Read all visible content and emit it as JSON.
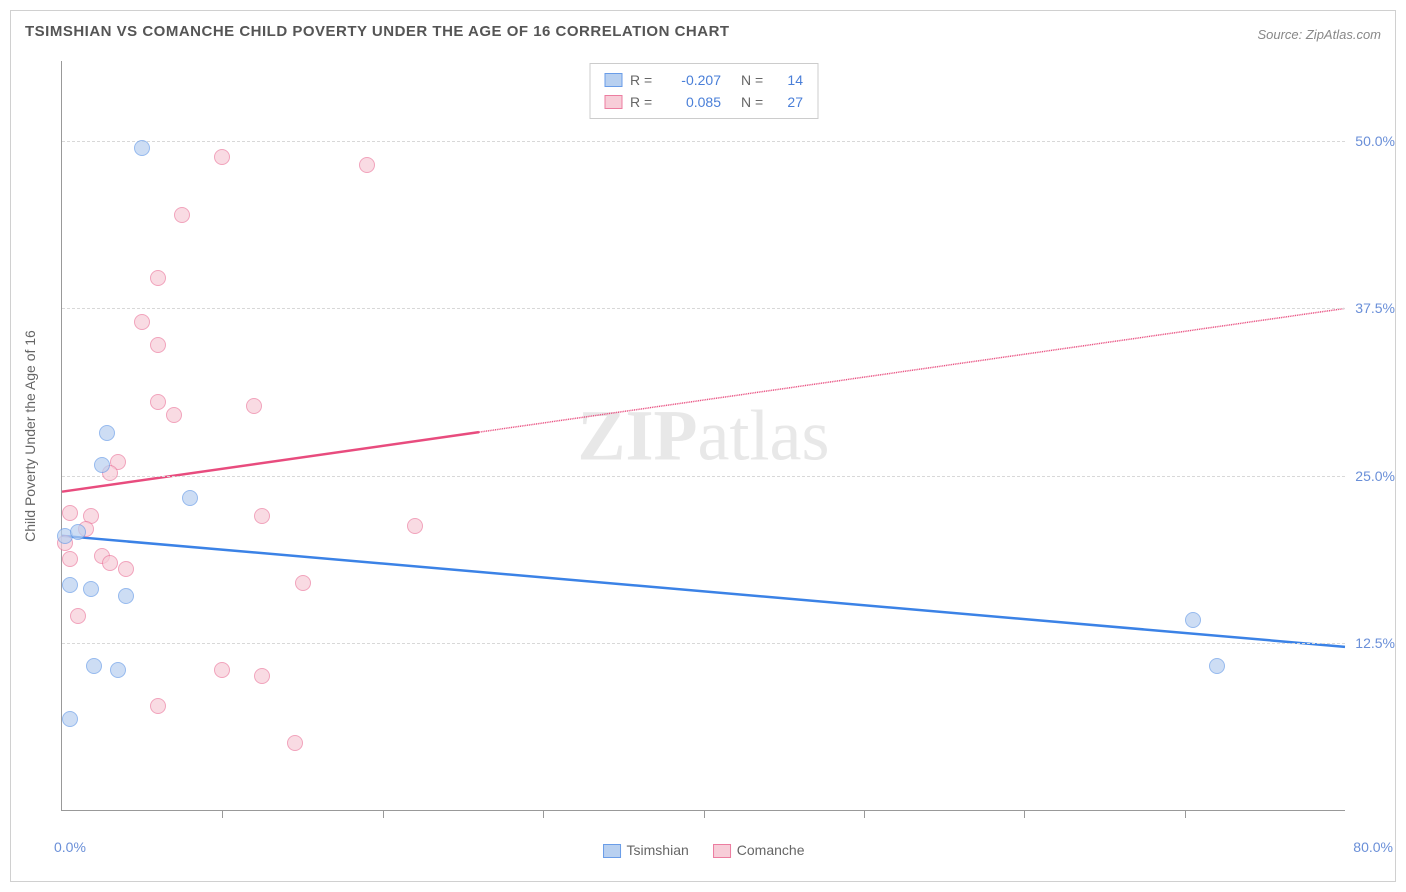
{
  "title": "TSIMSHIAN VS COMANCHE CHILD POVERTY UNDER THE AGE OF 16 CORRELATION CHART",
  "source": "Source: ZipAtlas.com",
  "watermark": {
    "part1": "ZIP",
    "part2": "atlas"
  },
  "y_axis_title": "Child Poverty Under the Age of 16",
  "chart": {
    "type": "scatter",
    "xlim": [
      0,
      80
    ],
    "ylim": [
      0,
      56
    ],
    "x_ticks": [
      10,
      20,
      30,
      40,
      50,
      60,
      70
    ],
    "x_labels": [
      {
        "v": 0,
        "label": "0.0%"
      },
      {
        "v": 80,
        "label": "80.0%"
      }
    ],
    "y_gridlines": [
      {
        "v": 12.5,
        "label": "12.5%"
      },
      {
        "v": 25.0,
        "label": "25.0%"
      },
      {
        "v": 37.5,
        "label": "37.5%"
      },
      {
        "v": 50.0,
        "label": "50.0%"
      }
    ],
    "background_color": "#ffffff",
    "grid_color": "#d8d8d8",
    "axis_color": "#999999",
    "label_color": "#6a8fd8",
    "series": [
      {
        "name": "Tsimshian",
        "fill_color": "#b8d0f0",
        "stroke_color": "#6a9de8",
        "line_color": "#3b82e6",
        "r_label": "R = ",
        "r_value": "-0.207",
        "n_label": "N = ",
        "n_value": "14",
        "trend": {
          "x1": 0,
          "y1": 20.5,
          "x2": 80,
          "y2": 12.2,
          "solid_until": 80
        },
        "points": [
          {
            "x": 5.0,
            "y": 49.5
          },
          {
            "x": 2.8,
            "y": 28.2
          },
          {
            "x": 2.5,
            "y": 25.8
          },
          {
            "x": 8.0,
            "y": 23.3
          },
          {
            "x": 0.2,
            "y": 20.5
          },
          {
            "x": 0.5,
            "y": 16.8
          },
          {
            "x": 1.8,
            "y": 16.5
          },
          {
            "x": 4.0,
            "y": 16.0
          },
          {
            "x": 2.0,
            "y": 10.8
          },
          {
            "x": 3.5,
            "y": 10.5
          },
          {
            "x": 0.5,
            "y": 6.8
          },
          {
            "x": 70.5,
            "y": 14.2
          },
          {
            "x": 72.0,
            "y": 10.8
          },
          {
            "x": 1.0,
            "y": 20.8
          }
        ]
      },
      {
        "name": "Comanche",
        "fill_color": "#f7cdd8",
        "stroke_color": "#ec7da0",
        "line_color": "#e84c7e",
        "r_label": "R = ",
        "r_value": " 0.085",
        "n_label": "N = ",
        "n_value": "27",
        "trend": {
          "x1": 0,
          "y1": 23.8,
          "x2": 80,
          "y2": 37.5,
          "solid_until": 26
        },
        "points": [
          {
            "x": 10.0,
            "y": 48.8
          },
          {
            "x": 19.0,
            "y": 48.2
          },
          {
            "x": 7.5,
            "y": 44.5
          },
          {
            "x": 6.0,
            "y": 39.8
          },
          {
            "x": 5.0,
            "y": 36.5
          },
          {
            "x": 6.0,
            "y": 34.8
          },
          {
            "x": 6.0,
            "y": 30.5
          },
          {
            "x": 12.0,
            "y": 30.2
          },
          {
            "x": 7.0,
            "y": 29.5
          },
          {
            "x": 3.5,
            "y": 26.0
          },
          {
            "x": 3.0,
            "y": 25.2
          },
          {
            "x": 0.5,
            "y": 22.2
          },
          {
            "x": 1.8,
            "y": 22.0
          },
          {
            "x": 1.5,
            "y": 21.0
          },
          {
            "x": 12.5,
            "y": 22.0
          },
          {
            "x": 22.0,
            "y": 21.2
          },
          {
            "x": 0.2,
            "y": 20.0
          },
          {
            "x": 2.5,
            "y": 19.0
          },
          {
            "x": 3.0,
            "y": 18.5
          },
          {
            "x": 4.0,
            "y": 18.0
          },
          {
            "x": 15.0,
            "y": 17.0
          },
          {
            "x": 10.0,
            "y": 10.5
          },
          {
            "x": 12.5,
            "y": 10.0
          },
          {
            "x": 6.0,
            "y": 7.8
          },
          {
            "x": 14.5,
            "y": 5.0
          },
          {
            "x": 1.0,
            "y": 14.5
          },
          {
            "x": 0.5,
            "y": 18.8
          }
        ]
      }
    ]
  },
  "legend_bottom": [
    {
      "label": "Tsimshian",
      "fill": "#b8d0f0",
      "stroke": "#6a9de8"
    },
    {
      "label": "Comanche",
      "fill": "#f7cdd8",
      "stroke": "#ec7da0"
    }
  ]
}
